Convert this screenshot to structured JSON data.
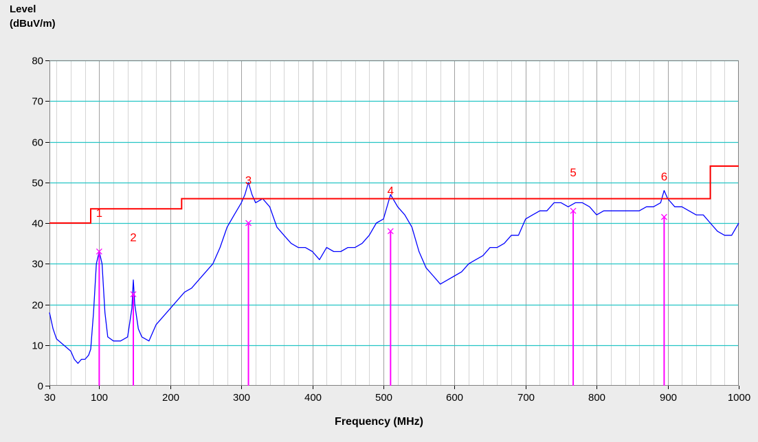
{
  "chart_data": {
    "type": "line",
    "ylabel_line1": "Level",
    "ylabel_line2": "(dBuV/m)",
    "xlabel": "Frequency (MHz)",
    "xlim": [
      30,
      1000
    ],
    "ylim": [
      0,
      80
    ],
    "y_ticks": [
      0,
      10,
      20,
      30,
      40,
      50,
      60,
      70,
      80
    ],
    "x_ticks": [
      30,
      100,
      200,
      300,
      400,
      500,
      600,
      700,
      800,
      900,
      1000
    ],
    "grid": true,
    "colors": {
      "plot_bg": "#ffffff",
      "major_vertical_grid": "#a0a0a0",
      "minor_vertical_grid": "#d4d4d4",
      "horizontal_grid": "#22c4c4",
      "measurement": "#0000ff",
      "limit": "#ff0000",
      "marker": "#ff00ff",
      "marker_label": "#ff0000"
    },
    "series": [
      {
        "kind": "measurement",
        "points": [
          [
            30,
            18
          ],
          [
            35,
            14
          ],
          [
            40,
            11.5
          ],
          [
            50,
            10
          ],
          [
            60,
            8.5
          ],
          [
            65,
            6.5
          ],
          [
            70,
            5.5
          ],
          [
            75,
            6.5
          ],
          [
            80,
            6.5
          ],
          [
            85,
            7.5
          ],
          [
            88,
            9
          ],
          [
            92,
            18
          ],
          [
            96,
            30
          ],
          [
            100,
            33
          ],
          [
            104,
            30
          ],
          [
            108,
            18
          ],
          [
            112,
            12
          ],
          [
            120,
            11
          ],
          [
            130,
            11
          ],
          [
            140,
            12
          ],
          [
            146,
            19
          ],
          [
            148,
            26
          ],
          [
            150,
            20
          ],
          [
            155,
            14
          ],
          [
            160,
            12
          ],
          [
            170,
            11
          ],
          [
            180,
            15
          ],
          [
            190,
            17
          ],
          [
            200,
            19
          ],
          [
            210,
            21
          ],
          [
            220,
            23
          ],
          [
            230,
            24
          ],
          [
            240,
            26
          ],
          [
            250,
            28
          ],
          [
            260,
            30
          ],
          [
            270,
            34
          ],
          [
            280,
            39
          ],
          [
            290,
            42
          ],
          [
            300,
            45
          ],
          [
            305,
            47
          ],
          [
            310,
            50
          ],
          [
            315,
            47
          ],
          [
            320,
            45
          ],
          [
            330,
            46
          ],
          [
            340,
            44
          ],
          [
            350,
            39
          ],
          [
            360,
            37
          ],
          [
            370,
            35
          ],
          [
            380,
            34
          ],
          [
            390,
            34
          ],
          [
            400,
            33
          ],
          [
            410,
            31
          ],
          [
            420,
            34
          ],
          [
            430,
            33
          ],
          [
            440,
            33
          ],
          [
            450,
            34
          ],
          [
            460,
            34
          ],
          [
            470,
            35
          ],
          [
            480,
            37
          ],
          [
            490,
            40
          ],
          [
            500,
            41
          ],
          [
            510,
            47
          ],
          [
            520,
            44
          ],
          [
            530,
            42
          ],
          [
            540,
            39
          ],
          [
            550,
            33
          ],
          [
            560,
            29
          ],
          [
            570,
            27
          ],
          [
            580,
            25
          ],
          [
            590,
            26
          ],
          [
            600,
            27
          ],
          [
            610,
            28
          ],
          [
            620,
            30
          ],
          [
            630,
            31
          ],
          [
            640,
            32
          ],
          [
            650,
            34
          ],
          [
            660,
            34
          ],
          [
            670,
            35
          ],
          [
            680,
            37
          ],
          [
            690,
            37
          ],
          [
            700,
            41
          ],
          [
            710,
            42
          ],
          [
            720,
            43
          ],
          [
            730,
            43
          ],
          [
            740,
            45
          ],
          [
            750,
            45
          ],
          [
            760,
            44
          ],
          [
            770,
            45
          ],
          [
            780,
            45
          ],
          [
            790,
            44
          ],
          [
            800,
            42
          ],
          [
            810,
            43
          ],
          [
            820,
            43
          ],
          [
            830,
            43
          ],
          [
            840,
            43
          ],
          [
            850,
            43
          ],
          [
            860,
            43
          ],
          [
            870,
            44
          ],
          [
            880,
            44
          ],
          [
            890,
            45
          ],
          [
            895,
            48
          ],
          [
            900,
            46
          ],
          [
            910,
            44
          ],
          [
            920,
            44
          ],
          [
            930,
            43
          ],
          [
            940,
            42
          ],
          [
            950,
            42
          ],
          [
            960,
            40
          ],
          [
            970,
            38
          ],
          [
            980,
            37
          ],
          [
            990,
            37
          ],
          [
            1000,
            40
          ]
        ]
      },
      {
        "kind": "limit",
        "points": [
          [
            30,
            40
          ],
          [
            88,
            40
          ],
          [
            88,
            43.5
          ],
          [
            216,
            43.5
          ],
          [
            216,
            46
          ],
          [
            960,
            46
          ],
          [
            960,
            54
          ],
          [
            1000,
            54
          ]
        ]
      }
    ],
    "markers": [
      {
        "label": "1",
        "freq": 100,
        "level": 33,
        "label_level": 41.5
      },
      {
        "label": "2",
        "freq": 148,
        "level": 22.5,
        "label_level": 35.5
      },
      {
        "label": "3",
        "freq": 310,
        "level": 40,
        "label_level": 49.5
      },
      {
        "label": "4",
        "freq": 510,
        "level": 38,
        "label_level": 47
      },
      {
        "label": "5",
        "freq": 767,
        "level": 43,
        "label_level": 51.5
      },
      {
        "label": "6",
        "freq": 895,
        "level": 41.5,
        "label_level": 50.5
      }
    ]
  }
}
